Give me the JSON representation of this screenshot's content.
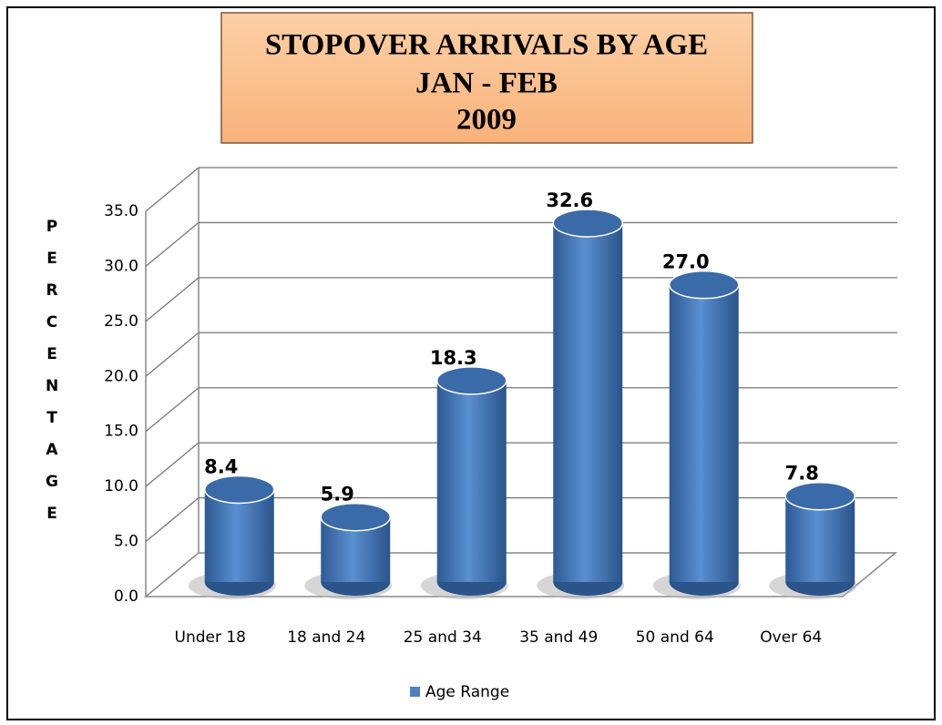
{
  "chart_data": {
    "type": "bar",
    "title": [
      "STOPOVER ARRIVALS BY AGE",
      "JAN - FEB",
      "2009"
    ],
    "y_label": "PERCENTAGE",
    "categories": [
      "Under 18",
      "18 and 24",
      "25 and 34",
      "35 and 49",
      "50 and 64",
      "Over 64"
    ],
    "series": [
      {
        "name": "Age Range",
        "color": "#4f81bd",
        "values": [
          8.4,
          5.9,
          18.3,
          32.6,
          27.0,
          7.8
        ],
        "value_labels": [
          "8.4",
          "5.9",
          "18.3",
          "32.6",
          "27.0",
          "7.8"
        ]
      }
    ],
    "ylim": [
      0,
      35
    ],
    "yticks": [
      {
        "value": 0,
        "label": "0.0"
      },
      {
        "value": 5,
        "label": "5.0"
      },
      {
        "value": 10,
        "label": "10.0"
      },
      {
        "value": 15,
        "label": "15.0"
      },
      {
        "value": 20,
        "label": "20.0"
      },
      {
        "value": 25,
        "label": "25.0"
      },
      {
        "value": 30,
        "label": "30.0"
      },
      {
        "value": 35,
        "label": "35.0"
      }
    ],
    "grid": true,
    "legend": "bottom"
  }
}
